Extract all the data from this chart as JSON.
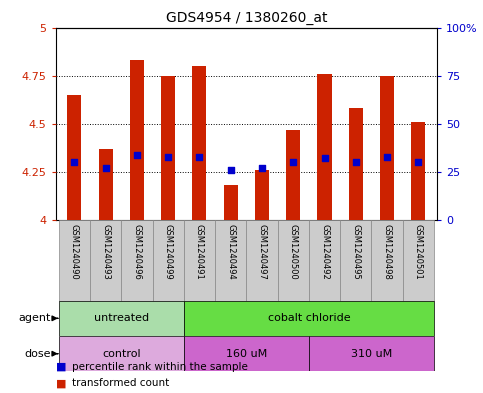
{
  "title": "GDS4954 / 1380260_at",
  "samples": [
    "GSM1240490",
    "GSM1240493",
    "GSM1240496",
    "GSM1240499",
    "GSM1240491",
    "GSM1240494",
    "GSM1240497",
    "GSM1240500",
    "GSM1240492",
    "GSM1240495",
    "GSM1240498",
    "GSM1240501"
  ],
  "bar_values": [
    4.65,
    4.37,
    4.83,
    4.75,
    4.8,
    4.18,
    4.26,
    4.47,
    4.76,
    4.58,
    4.75,
    4.51
  ],
  "percentile_values": [
    4.3,
    4.27,
    4.34,
    4.33,
    4.33,
    4.26,
    4.27,
    4.3,
    4.32,
    4.3,
    4.33,
    4.3
  ],
  "ymin": 4.0,
  "ymax": 5.0,
  "yticks": [
    4.0,
    4.25,
    4.5,
    4.75,
    5.0
  ],
  "ytick_labels": [
    "4",
    "4.25",
    "4.5",
    "4.75",
    "5"
  ],
  "right_ytick_pct": [
    0,
    25,
    50,
    75,
    100
  ],
  "right_ytick_labels": [
    "0",
    "25",
    "50",
    "75",
    "100%"
  ],
  "bar_color": "#cc2200",
  "percentile_color": "#0000cc",
  "agent_groups": [
    {
      "label": "untreated",
      "start": 0,
      "end": 4,
      "color": "#aaddaa"
    },
    {
      "label": "cobalt chloride",
      "start": 4,
      "end": 12,
      "color": "#66dd44"
    }
  ],
  "dose_groups": [
    {
      "label": "control",
      "start": 0,
      "end": 4,
      "color": "#ddaadd"
    },
    {
      "label": "160 uM",
      "start": 4,
      "end": 8,
      "color": "#cc66cc"
    },
    {
      "label": "310 uM",
      "start": 8,
      "end": 12,
      "color": "#cc66cc"
    }
  ],
  "legend_items": [
    {
      "label": "transformed count",
      "color": "#cc2200"
    },
    {
      "label": "percentile rank within the sample",
      "color": "#0000cc"
    }
  ],
  "bar_width": 0.45,
  "tick_fontsize": 8,
  "title_fontsize": 10,
  "sample_fontsize": 6,
  "group_fontsize": 8,
  "legend_fontsize": 8,
  "sample_box_color": "#cccccc",
  "sample_box_edge": "#888888"
}
